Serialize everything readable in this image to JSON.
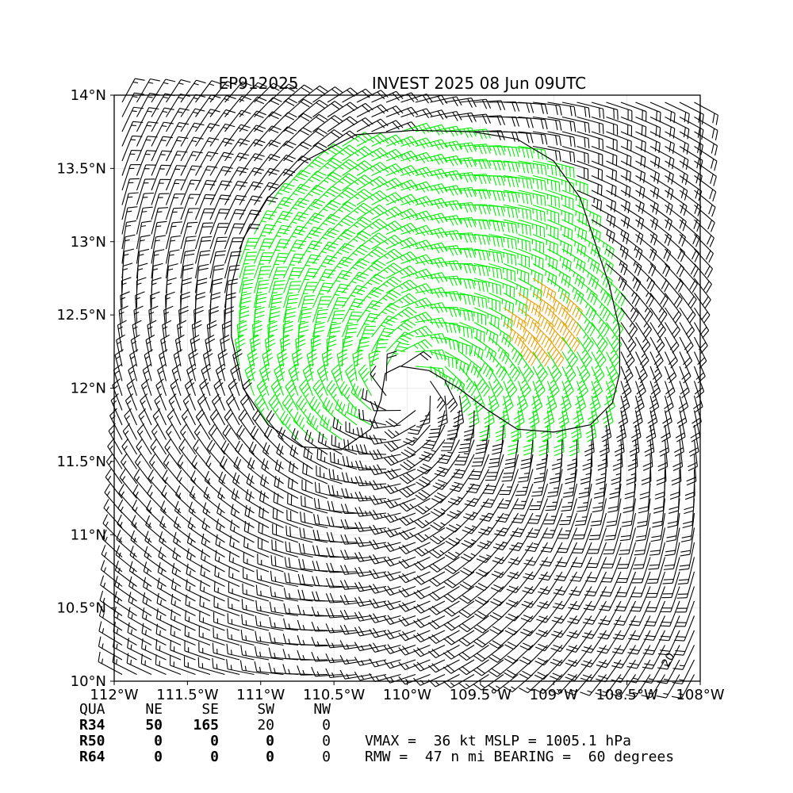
{
  "chart_data": {
    "type": "wind-barb-map",
    "title_left": "EP912025",
    "title_right": "INVEST 2025 08 Jun 09UTC",
    "x_ticks": [
      {
        "value": -112.0,
        "label": "112°W"
      },
      {
        "value": -111.5,
        "label": "111.5°W"
      },
      {
        "value": -111.0,
        "label": "111°W"
      },
      {
        "value": -110.5,
        "label": "110.5°W"
      },
      {
        "value": -110.0,
        "label": "110°W"
      },
      {
        "value": -109.5,
        "label": "109.5°W"
      },
      {
        "value": -109.0,
        "label": "109°W"
      },
      {
        "value": -108.5,
        "label": "108.5°W"
      },
      {
        "value": -108.0,
        "label": "108°W"
      }
    ],
    "y_ticks": [
      {
        "value": 14.0,
        "label": "14°N"
      },
      {
        "value": 13.5,
        "label": "13.5°N"
      },
      {
        "value": 13.0,
        "label": "13°N"
      },
      {
        "value": 12.5,
        "label": "12.5°N"
      },
      {
        "value": 12.0,
        "label": "12°N"
      },
      {
        "value": 11.5,
        "label": "11.5°N"
      },
      {
        "value": 11.0,
        "label": "11°N"
      },
      {
        "value": 10.5,
        "label": "10.5°N"
      },
      {
        "value": 10.0,
        "label": "10°N"
      }
    ],
    "xlim": [
      -112.0,
      -108.0
    ],
    "ylim": [
      10.0,
      14.0
    ],
    "grid": true,
    "center": {
      "lon": -110.0,
      "lat": 12.0
    },
    "vmax_kt": 36,
    "rmw_nmi": 47,
    "bearing_deg": 60,
    "r34_contour": [
      [
        -110.05,
        12.15
      ],
      [
        -109.85,
        12.12
      ],
      [
        -109.65,
        12.0
      ],
      [
        -109.45,
        11.85
      ],
      [
        -109.25,
        11.72
      ],
      [
        -109.0,
        11.7
      ],
      [
        -108.75,
        11.75
      ],
      [
        -108.6,
        11.9
      ],
      [
        -108.55,
        12.1
      ],
      [
        -108.55,
        12.4
      ],
      [
        -108.62,
        12.7
      ],
      [
        -108.72,
        13.0
      ],
      [
        -108.82,
        13.3
      ],
      [
        -109.0,
        13.55
      ],
      [
        -109.25,
        13.7
      ],
      [
        -109.55,
        13.75
      ],
      [
        -109.95,
        13.76
      ],
      [
        -110.35,
        13.73
      ],
      [
        -110.7,
        13.55
      ],
      [
        -110.95,
        13.3
      ],
      [
        -111.12,
        13.02
      ],
      [
        -111.2,
        12.7
      ],
      [
        -111.2,
        12.35
      ],
      [
        -111.12,
        12.0
      ],
      [
        -110.95,
        11.75
      ],
      [
        -110.72,
        11.6
      ],
      [
        -110.45,
        11.58
      ],
      [
        -110.25,
        11.72
      ],
      [
        -110.18,
        11.92
      ],
      [
        -110.15,
        12.1
      ],
      [
        -110.05,
        12.15
      ]
    ],
    "colors": {
      "below_34": "#000000",
      "r34": "#00ee00",
      "r50": "#e8a000",
      "contour": "#000000"
    }
  },
  "table": {
    "header": [
      "QUA",
      "NE",
      "SE",
      "SW",
      "NW"
    ],
    "rows": [
      {
        "label": "R34",
        "values": [
          "50",
          "165",
          "20",
          "0"
        ]
      },
      {
        "label": "R50",
        "values": [
          "0",
          "0",
          "0",
          "0"
        ]
      },
      {
        "label": "R64",
        "values": [
          "0",
          "0",
          "0",
          "0"
        ]
      }
    ],
    "summary_line1": "VMAX =  36 kt MSLP = 1005.1 hPa",
    "summary_line2": "RMW =  47 n mi BEARING =  60 degrees"
  },
  "corner_label": "20"
}
